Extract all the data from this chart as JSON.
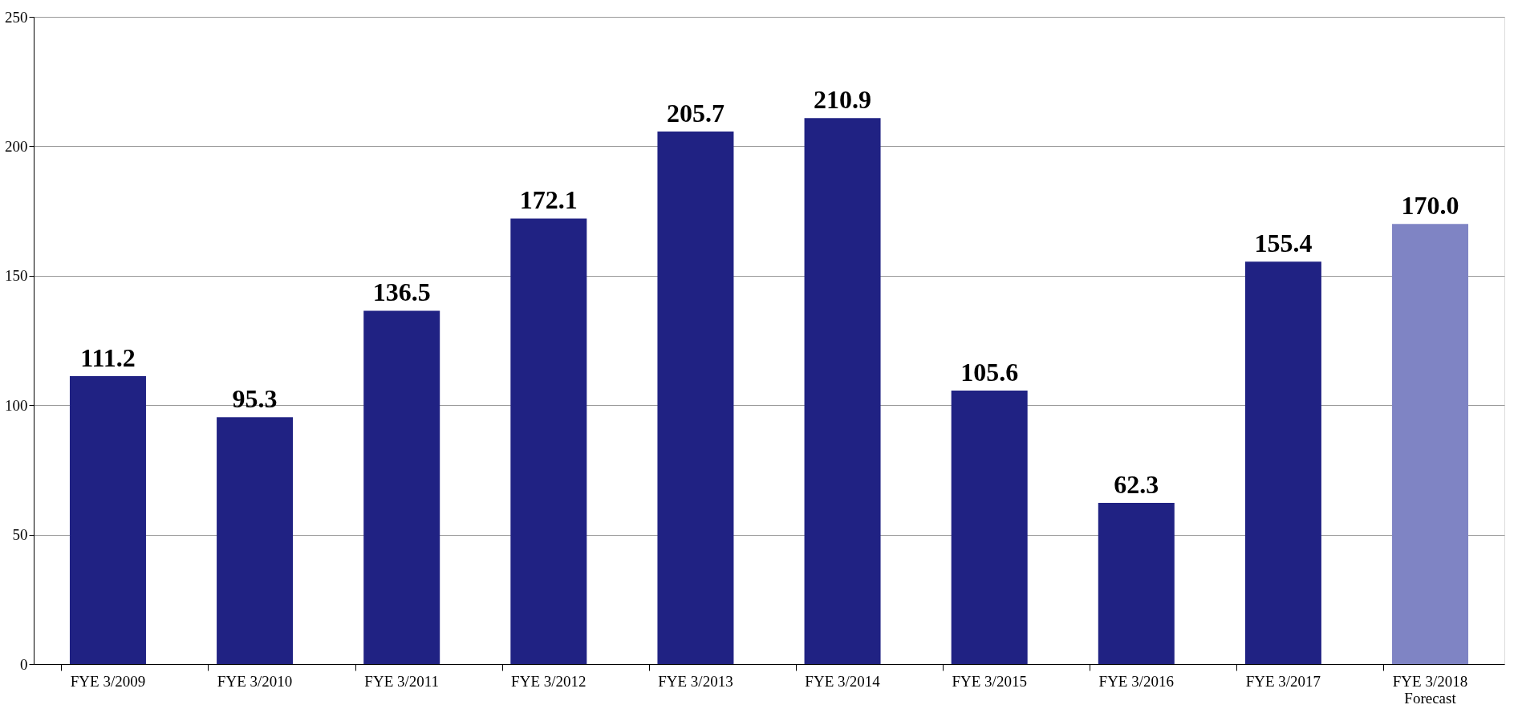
{
  "chart_data": {
    "type": "bar",
    "categories": [
      "FYE 3/2009",
      "FYE 3/2010",
      "FYE 3/2011",
      "FYE 3/2012",
      "FYE 3/2013",
      "FYE 3/2014",
      "FYE 3/2015",
      "FYE 3/2016",
      "FYE 3/2017",
      "FYE 3/2018\nForecast"
    ],
    "values": [
      111.2,
      95.3,
      136.5,
      172.1,
      205.7,
      210.9,
      105.6,
      62.3,
      155.4,
      170.0
    ],
    "value_labels": [
      "111.2",
      "95.3",
      "136.5",
      "172.1",
      "205.7",
      "210.9",
      "105.6",
      "62.3",
      "155.4",
      "170.0"
    ],
    "colors": [
      "#202283",
      "#202283",
      "#202283",
      "#202283",
      "#202283",
      "#202283",
      "#202283",
      "#202283",
      "#202283",
      "#7f84c4"
    ],
    "ylim": [
      0,
      250
    ],
    "yticks": [
      0,
      50,
      100,
      150,
      200,
      250
    ],
    "grid": "y"
  }
}
